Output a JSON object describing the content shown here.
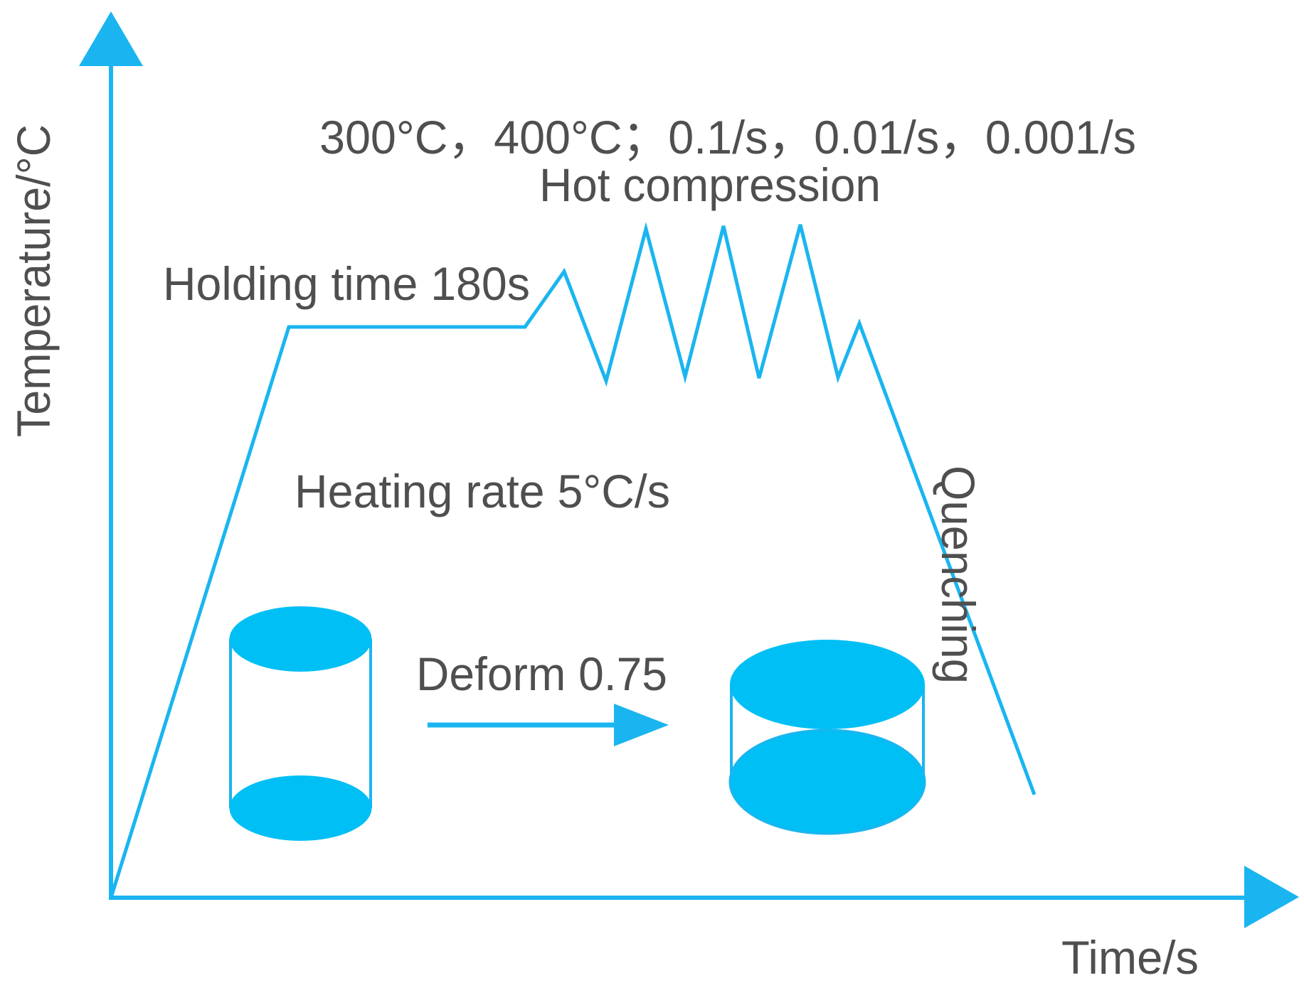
{
  "diagram": {
    "axes": {
      "y_label": "Temperature/°C",
      "x_label": "Time/s"
    },
    "labels": {
      "conditions": "300°C，400°C；0.1/s，0.01/s，0.001/s",
      "hot_compression": "Hot compression",
      "holding_time": "Holding time 180s",
      "heating_rate": "Heating rate 5°C/s",
      "deform": "Deform 0.75",
      "quenching": "Quenching"
    },
    "colors": {
      "accent": "#1ab5f0",
      "text": "#4f4f4f",
      "background": "#ffffff"
    }
  }
}
